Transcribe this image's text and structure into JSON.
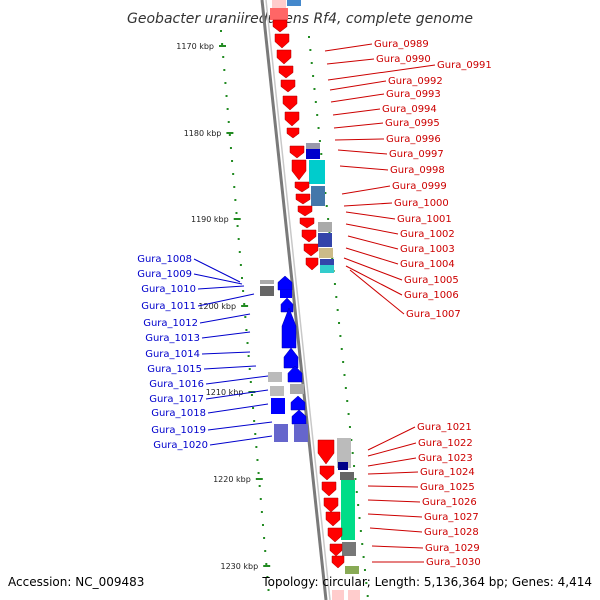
{
  "title": "Geobacter uraniireducens Rf4, complete genome",
  "footer": {
    "accession": "Accession: NC_009483",
    "summary": "Topology: circular; Length: 5,136,364 bp; Genes: 4,414"
  },
  "scale_labels": [
    "1170 kbp",
    "1180 kbp",
    "1190 kbp",
    "1200 kbp",
    "1210 kbp",
    "1220 kbp",
    "1230 kbp"
  ],
  "colors": {
    "forward_strand": "#ff0000",
    "reverse_strand": "#0000ff",
    "forward_label": "#cc0000",
    "reverse_label": "#0000cc",
    "tick": "#228b22",
    "backbone": "#808080"
  },
  "genes_right": [
    "Gura_0989",
    "Gura_0990",
    "Gura_0991",
    "Gura_0992",
    "Gura_0993",
    "Gura_0994",
    "Gura_0995",
    "Gura_0996",
    "Gura_0997",
    "Gura_0998",
    "Gura_0999",
    "Gura_1000",
    "Gura_1001",
    "Gura_1002",
    "Gura_1003",
    "Gura_1004",
    "Gura_1005",
    "Gura_1006",
    "Gura_1007"
  ],
  "genes_left": [
    "Gura_1008",
    "Gura_1009",
    "Gura_1010",
    "Gura_1011",
    "Gura_1012",
    "Gura_1013",
    "Gura_1014",
    "Gura_1015",
    "Gura_1016",
    "Gura_1017",
    "Gura_1018",
    "Gura_1019",
    "Gura_1020"
  ],
  "genes_bottom": [
    "Gura_1021",
    "Gura_1022",
    "Gura_1023",
    "Gura_1024",
    "Gura_1025",
    "Gura_1026",
    "Gura_1027",
    "Gura_1028",
    "Gura_1029",
    "Gura_1030"
  ]
}
